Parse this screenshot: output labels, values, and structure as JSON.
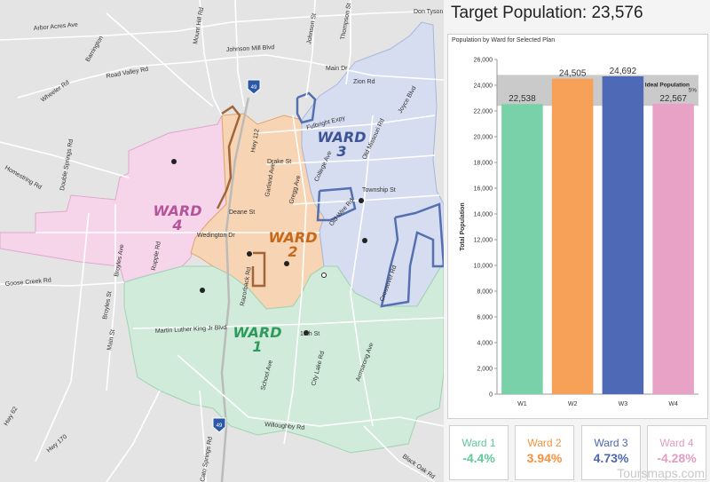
{
  "header": {
    "title": "Target Population: 23,576"
  },
  "colors": {
    "ward1": "#5fc99a",
    "ward2": "#f5913e",
    "ward3": "#4b67b5",
    "ward4": "#e39cc2",
    "ward1_bar": "#78d1a8",
    "ward2_bar": "#f7a058",
    "ward3_bar": "#4e69b6",
    "ward4_bar": "#e8a2c6",
    "ideal_band": "#bdbdbd"
  },
  "map": {
    "ward_labels": [
      {
        "id": "w1",
        "line1": "WARD",
        "line2": "1"
      },
      {
        "id": "w2",
        "line1": "WARD",
        "line2": "2"
      },
      {
        "id": "w3",
        "line1": "WARD",
        "line2": "3"
      },
      {
        "id": "w4",
        "line1": "WARD",
        "line2": "4"
      }
    ],
    "roads": [
      "Don Tyson",
      "Arbor Acres Ave",
      "Johnson Mill Blvd",
      "Barrington",
      "Road Valley Rd",
      "Wheeler Rd",
      "Main Dr",
      "Zion Rd",
      "Joyce Blvd",
      "Fulbright Expy",
      "Homestring Rd",
      "Double Springs Rd",
      "Drake St",
      "College Ave",
      "Old Missouri Rd",
      "Township St",
      "Deane St",
      "Wedington Dr",
      "Gregg Ave",
      "Old Wire Rd",
      "Crossover Rd",
      "Goose Creek Rd",
      "Broyles Ave",
      "Rupple Rd",
      "Razorback Rd",
      "Martin Luther King Jr Blvd",
      "15th St",
      "Broyles St",
      "Main St",
      "School Ave",
      "City Lake Rd",
      "Armstrong Ave",
      "Hwy 62",
      "Hwy 170",
      "Willoughby Rd",
      "Black Oak Rd",
      "Thompson St",
      "Johnson St",
      "Hwy 112",
      "Garland Ave",
      "Mount Hill Rd",
      "Cato Springs Rd"
    ],
    "shields": [
      "49",
      "49"
    ]
  },
  "chart_data": {
    "type": "bar",
    "title": "Population by Ward for Selected Plan",
    "ylabel": "Total Population",
    "xlabel": "",
    "categories": [
      "W1",
      "W2",
      "W3",
      "W4"
    ],
    "values": [
      22538,
      24505,
      24692,
      22567
    ],
    "value_labels": [
      "22,538",
      "24,505",
      "24,692",
      "22,567"
    ],
    "ylim": [
      0,
      26000
    ],
    "yticks": [
      0,
      2000,
      4000,
      6000,
      8000,
      10000,
      12000,
      14000,
      16000,
      18000,
      20000,
      22000,
      24000,
      26000
    ],
    "ytick_labels": [
      "0",
      "2,000",
      "4,000",
      "6,000",
      "8,000",
      "10,000",
      "12,000",
      "14,000",
      "16,000",
      "18,000",
      "20,000",
      "22,000",
      "24,000",
      "26,000"
    ],
    "ideal_band": [
      22400,
      24800
    ],
    "ideal_label": "Ideal Population",
    "ideal_label_suffix": "5%",
    "grid": false
  },
  "cards": [
    {
      "name": "Ward 1",
      "pct": "-4.4%",
      "color": "#5fc99a"
    },
    {
      "name": "Ward 2",
      "pct": "3.94%",
      "color": "#f5913e"
    },
    {
      "name": "Ward 3",
      "pct": "4.73%",
      "color": "#4b67b5"
    },
    {
      "name": "Ward 4",
      "pct": "-4.28%",
      "color": "#e39cc2"
    }
  ],
  "watermark": "Toursmaps.com"
}
